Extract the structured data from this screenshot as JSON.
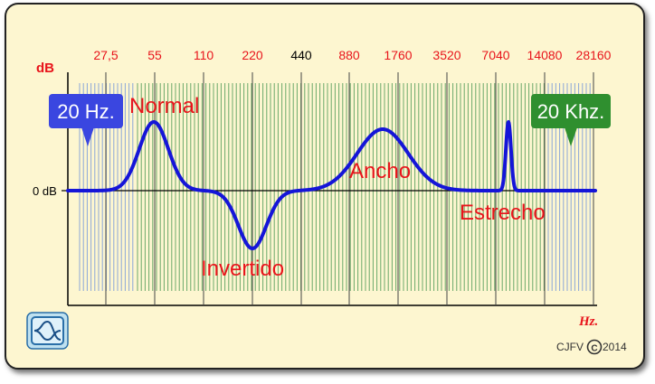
{
  "axis": {
    "y_unit": "dB",
    "x_unit": "Hz.",
    "zero_label": "0 dB"
  },
  "frequencies": [
    "27,5",
    "55",
    "110",
    "220",
    "440",
    "880",
    "1760",
    "3520",
    "7040",
    "14080",
    "28160"
  ],
  "bands": {
    "low": {
      "label": "20 Hz.",
      "color": "#3a46e0"
    },
    "high": {
      "label": "20 Khz.",
      "color": "#2f8f2f"
    }
  },
  "filters": {
    "normal": "Normal",
    "invertido": "Invertido",
    "ancho": "Ancho",
    "estrecho": "Estrecho"
  },
  "credit": {
    "author": "CJFV",
    "symbol": "C",
    "year": "2014"
  },
  "icons": {
    "corner_button": "bell-curve-icon"
  },
  "colors": {
    "panel": "#fdf6d0",
    "curve": "#1515d8",
    "labels": "#e8141b",
    "green_lines": "#6aa86a",
    "blue_lines": "#8aa7d8"
  }
}
